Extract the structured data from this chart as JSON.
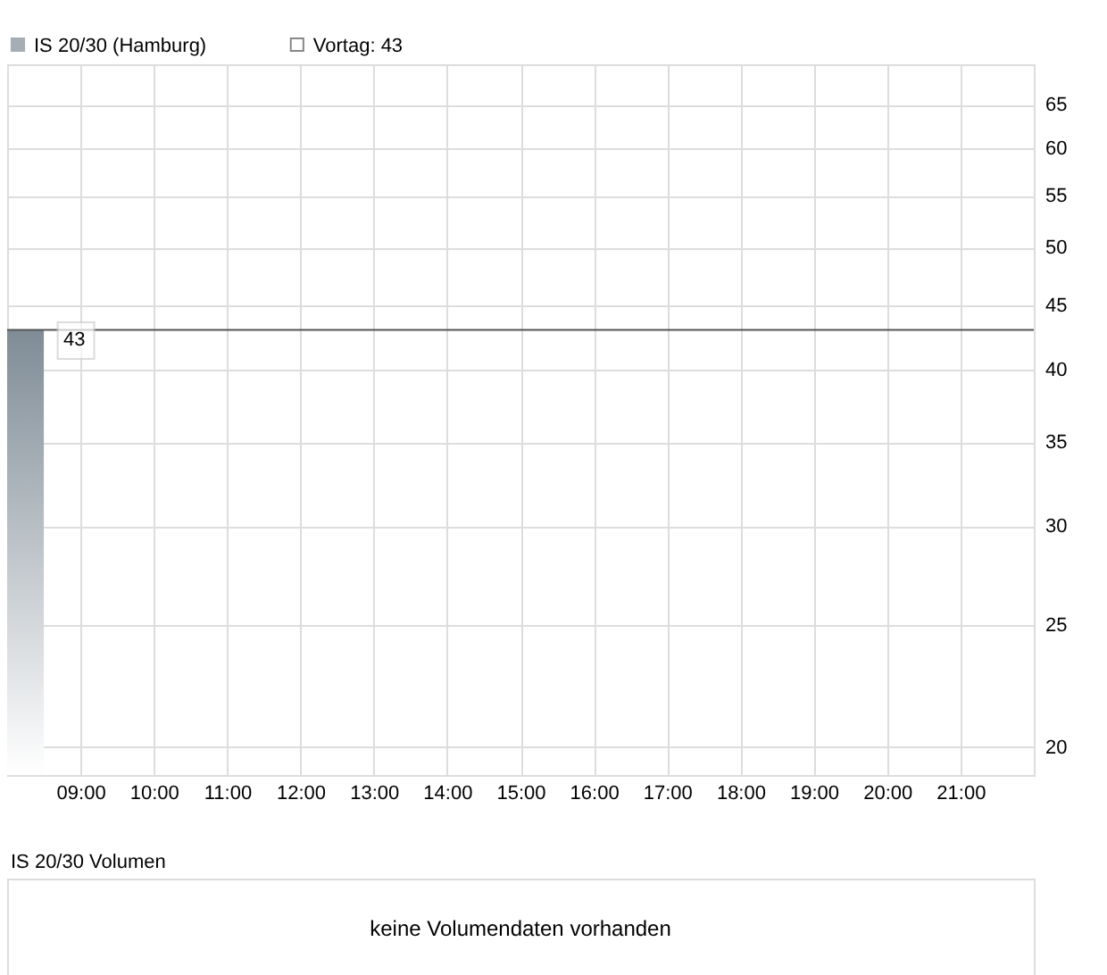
{
  "chart_data": [
    {
      "type": "area",
      "x": [
        8,
        8.5
      ],
      "series": [
        {
          "name": "IS 20/30 (Hamburg)",
          "color": "#7f8c96",
          "values": [
            43,
            43
          ]
        }
      ],
      "xlim": [
        8,
        22
      ],
      "xticks": [
        {
          "value": 9,
          "label": "09:00"
        },
        {
          "value": 10,
          "label": "10:00"
        },
        {
          "value": 11,
          "label": "11:00"
        },
        {
          "value": 12,
          "label": "12:00"
        },
        {
          "value": 13,
          "label": "13:00"
        },
        {
          "value": 14,
          "label": "14:00"
        },
        {
          "value": 15,
          "label": "15:00"
        },
        {
          "value": 16,
          "label": "16:00"
        },
        {
          "value": 17,
          "label": "17:00"
        },
        {
          "value": 18,
          "label": "18:00"
        },
        {
          "value": 19,
          "label": "19:00"
        },
        {
          "value": 20,
          "label": "20:00"
        },
        {
          "value": 21,
          "label": "21:00"
        }
      ],
      "ylim": [
        19,
        70
      ],
      "yticks": [
        20,
        25,
        30,
        35,
        40,
        45,
        50,
        55,
        60,
        65
      ],
      "log": true,
      "grid": true,
      "legend": "top left",
      "ref_lines": [
        {
          "axis": "y",
          "value": 43,
          "label": "Vortag: 43",
          "color": "#555555"
        }
      ],
      "annotations": [
        {
          "text": "43",
          "x": 8.5,
          "y": 43
        }
      ]
    },
    {
      "type": "other",
      "title": "IS 20/30 Volumen",
      "annotations": [
        "keine Volumendaten vorhanden"
      ]
    }
  ]
}
